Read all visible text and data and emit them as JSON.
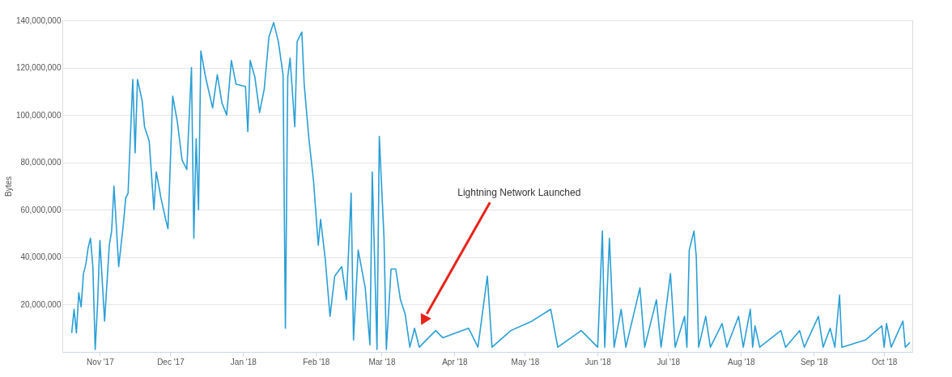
{
  "chart_data": {
    "type": "line",
    "ylabel": "Bytes",
    "x": [
      "2017-10-20",
      "2017-10-21",
      "2017-10-22",
      "2017-10-23",
      "2017-10-24",
      "2017-10-25",
      "2017-10-26",
      "2017-10-27",
      "2017-10-28",
      "2017-10-29",
      "2017-10-30",
      "2017-10-31",
      "2017-11-01",
      "2017-11-03",
      "2017-11-05",
      "2017-11-06",
      "2017-11-07",
      "2017-11-09",
      "2017-11-11",
      "2017-11-12",
      "2017-11-13",
      "2017-11-15",
      "2017-11-16",
      "2017-11-17",
      "2017-11-19",
      "2017-11-20",
      "2017-11-22",
      "2017-11-24",
      "2017-11-25",
      "2017-11-27",
      "2017-11-29",
      "2017-11-30",
      "2017-12-02",
      "2017-12-04",
      "2017-12-06",
      "2017-12-08",
      "2017-12-10",
      "2017-12-11",
      "2017-12-12",
      "2017-12-13",
      "2017-12-14",
      "2017-12-16",
      "2017-12-19",
      "2017-12-21",
      "2017-12-23",
      "2017-12-25",
      "2017-12-27",
      "2017-12-29",
      "2018-01-02",
      "2018-01-03",
      "2018-01-04",
      "2018-01-06",
      "2018-01-08",
      "2018-01-10",
      "2018-01-12",
      "2018-01-14",
      "2018-01-16",
      "2018-01-18",
      "2018-01-19",
      "2018-01-20",
      "2018-01-21",
      "2018-01-23",
      "2018-01-24",
      "2018-01-26",
      "2018-01-27",
      "2018-01-29",
      "2018-01-31",
      "2018-02-02",
      "2018-02-03",
      "2018-02-05",
      "2018-02-07",
      "2018-02-09",
      "2018-02-12",
      "2018-02-14",
      "2018-02-16",
      "2018-02-17",
      "2018-02-19",
      "2018-02-22",
      "2018-02-24",
      "2018-02-25",
      "2018-02-27",
      "2018-02-28",
      "2018-03-02",
      "2018-03-03",
      "2018-03-05",
      "2018-03-07",
      "2018-03-09",
      "2018-03-11",
      "2018-03-13",
      "2018-03-15",
      "2018-03-17",
      "2018-03-24",
      "2018-03-27",
      "2018-04-07",
      "2018-04-11",
      "2018-04-15",
      "2018-04-17",
      "2018-04-25",
      "2018-05-04",
      "2018-05-12",
      "2018-05-15",
      "2018-05-25",
      "2018-06-01",
      "2018-06-03",
      "2018-06-04",
      "2018-06-06",
      "2018-06-08",
      "2018-06-11",
      "2018-06-13",
      "2018-06-19",
      "2018-06-21",
      "2018-06-26",
      "2018-06-28",
      "2018-07-02",
      "2018-07-04",
      "2018-07-08",
      "2018-07-09",
      "2018-07-10",
      "2018-07-12",
      "2018-07-13",
      "2018-07-14",
      "2018-07-17",
      "2018-07-19",
      "2018-07-24",
      "2018-07-26",
      "2018-07-31",
      "2018-08-02",
      "2018-08-05",
      "2018-08-06",
      "2018-08-07",
      "2018-08-09",
      "2018-08-18",
      "2018-08-20",
      "2018-08-26",
      "2018-08-28",
      "2018-09-03",
      "2018-09-05",
      "2018-09-08",
      "2018-09-10",
      "2018-09-12",
      "2018-09-13",
      "2018-09-23",
      "2018-09-30",
      "2018-10-01",
      "2018-10-02",
      "2018-10-04",
      "2018-10-09",
      "2018-10-10",
      "2018-10-12"
    ],
    "series": [
      {
        "color": "#2a9fd6",
        "values": [
          8000000,
          18000000,
          8000000,
          25000000,
          19000000,
          33000000,
          37000000,
          44000000,
          48000000,
          36000000,
          1000000,
          20000000,
          47000000,
          13000000,
          45000000,
          51000000,
          70000000,
          36000000,
          54000000,
          65000000,
          67000000,
          115000000,
          84000000,
          115000000,
          106000000,
          95000000,
          89000000,
          60000000,
          76000000,
          65000000,
          56000000,
          52000000,
          108000000,
          97000000,
          81000000,
          77000000,
          120000000,
          48000000,
          90000000,
          60000000,
          127000000,
          116000000,
          103000000,
          117000000,
          105000000,
          100000000,
          123000000,
          113000000,
          112000000,
          93000000,
          123000000,
          116000000,
          101000000,
          111000000,
          133000000,
          139000000,
          131000000,
          117000000,
          10000000,
          116000000,
          124000000,
          95000000,
          131000000,
          135000000,
          113000000,
          90000000,
          72000000,
          45000000,
          56000000,
          39000000,
          15000000,
          32000000,
          36000000,
          22000000,
          67000000,
          5000000,
          43000000,
          27000000,
          3000000,
          76000000,
          1000000,
          91000000,
          48000000,
          1000000,
          35000000,
          35000000,
          22000000,
          16000000,
          2000000,
          10000000,
          2000000,
          9000000,
          6000000,
          10000000,
          2000000,
          32000000,
          2000000,
          9000000,
          13000000,
          18000000,
          2000000,
          9000000,
          2000000,
          51000000,
          2000000,
          48000000,
          2000000,
          18000000,
          2000000,
          27000000,
          2000000,
          22000000,
          2000000,
          33000000,
          2000000,
          15000000,
          2000000,
          43000000,
          51000000,
          40000000,
          2000000,
          15000000,
          2000000,
          12000000,
          2000000,
          15000000,
          2000000,
          18000000,
          2000000,
          11000000,
          2000000,
          9000000,
          2000000,
          9000000,
          2000000,
          15000000,
          2000000,
          10000000,
          2000000,
          24000000,
          2000000,
          5000000,
          11000000,
          2000000,
          12000000,
          2000000,
          13000000,
          2000000,
          4000000
        ]
      }
    ],
    "xlim": [
      "2017-10-16",
      "2018-10-13"
    ],
    "xticks": [
      {
        "value": "2017-11-01",
        "label": "Nov '17"
      },
      {
        "value": "2017-12-01",
        "label": "Dec '17"
      },
      {
        "value": "2018-01-01",
        "label": "Jan '18"
      },
      {
        "value": "2018-02-01",
        "label": "Feb '18"
      },
      {
        "value": "2018-03-01",
        "label": "Mar '18"
      },
      {
        "value": "2018-04-01",
        "label": "Apr '18"
      },
      {
        "value": "2018-05-01",
        "label": "May '18"
      },
      {
        "value": "2018-06-01",
        "label": "Jun '18"
      },
      {
        "value": "2018-07-01",
        "label": "Jul '18"
      },
      {
        "value": "2018-08-01",
        "label": "Aug '18"
      },
      {
        "value": "2018-09-01",
        "label": "Sep '18"
      },
      {
        "value": "2018-10-01",
        "label": "Oct '18"
      }
    ],
    "ylim": [
      0,
      140000000
    ],
    "yticks": [
      {
        "value": 20000000,
        "label": "20,000,000"
      },
      {
        "value": 40000000,
        "label": "40,000,000"
      },
      {
        "value": 60000000,
        "label": "60,000,000"
      },
      {
        "value": 80000000,
        "label": "80,000,000"
      },
      {
        "value": 100000000,
        "label": "100,000,000"
      },
      {
        "value": 120000000,
        "label": "120,000,000"
      },
      {
        "value": 140000000,
        "label": "140,000,000"
      }
    ],
    "grid": "y",
    "marker": "none",
    "line_style": "solid",
    "annotations": [
      "Lightning Network Launched"
    ]
  }
}
